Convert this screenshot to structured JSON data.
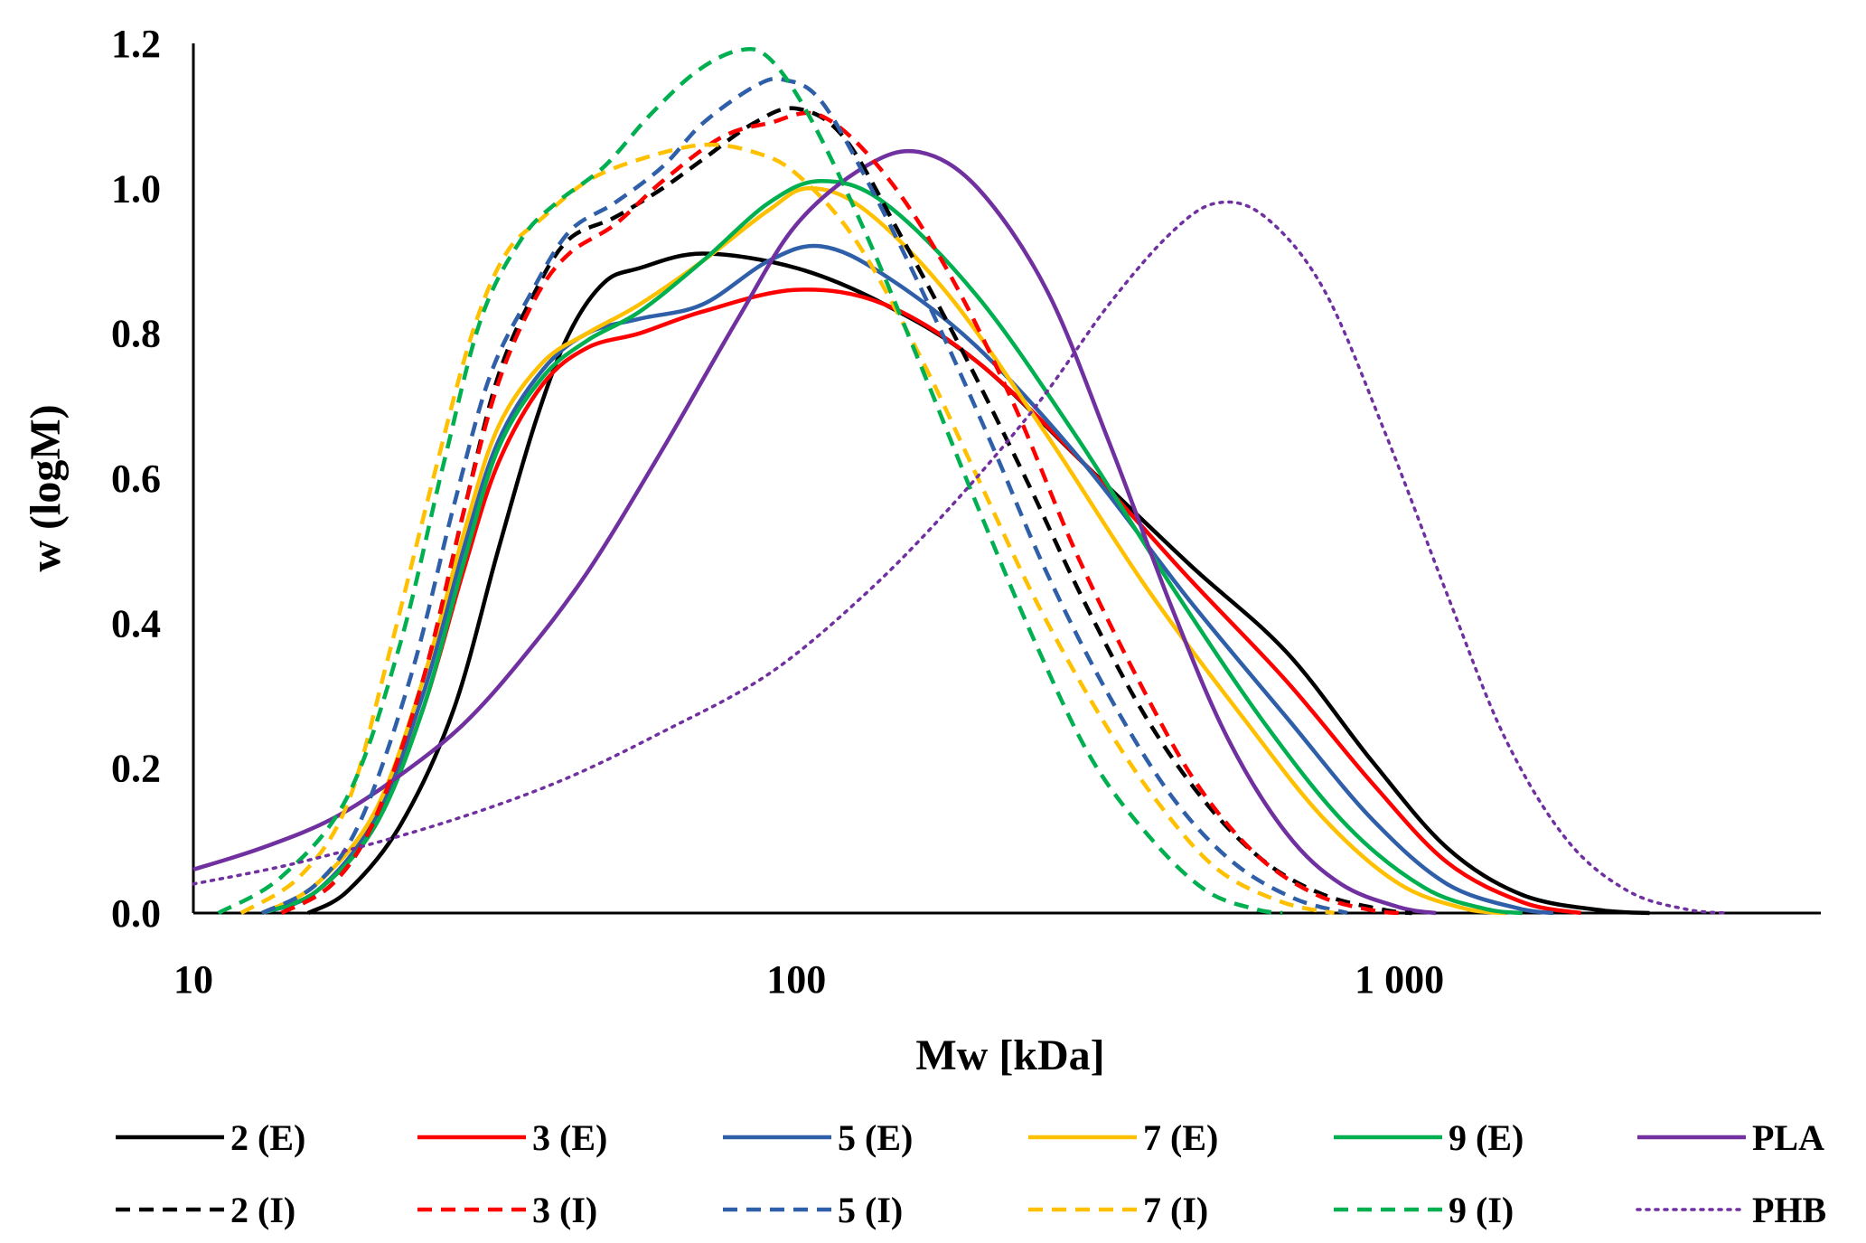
{
  "chart_data": {
    "type": "line",
    "title": "",
    "xlabel": "Mw [kDa]",
    "ylabel": "w (logM)",
    "xscale": "log",
    "xlim": [
      10,
      5000
    ],
    "ylim": [
      0,
      1.2
    ],
    "xticks": [
      10,
      100,
      1000
    ],
    "xtick_labels": [
      "10",
      "100",
      "1 000"
    ],
    "yticks": [
      0,
      0.2,
      0.4,
      0.6,
      0.8,
      1.0,
      1.2
    ],
    "ytick_labels": [
      "0.0",
      "0.2",
      "0.4",
      "0.6",
      "0.8",
      "1.0",
      "1.2"
    ],
    "grid": false,
    "legend_position": "bottom",
    "series": [
      {
        "name": "2 (E)",
        "color": "#000000",
        "style": "solid",
        "points": [
          [
            15.5,
            0
          ],
          [
            18,
            0.03
          ],
          [
            22,
            0.12
          ],
          [
            27,
            0.28
          ],
          [
            32,
            0.5
          ],
          [
            37,
            0.68
          ],
          [
            42,
            0.8
          ],
          [
            48,
            0.87
          ],
          [
            55,
            0.89
          ],
          [
            70,
            0.91
          ],
          [
            100,
            0.89
          ],
          [
            140,
            0.84
          ],
          [
            200,
            0.76
          ],
          [
            300,
            0.62
          ],
          [
            450,
            0.48
          ],
          [
            650,
            0.36
          ],
          [
            900,
            0.21
          ],
          [
            1200,
            0.09
          ],
          [
            1600,
            0.025
          ],
          [
            2200,
            0.003
          ],
          [
            2600,
            0
          ]
        ]
      },
      {
        "name": "3 (E)",
        "color": "#ff0000",
        "style": "solid",
        "points": [
          [
            13,
            0
          ],
          [
            16,
            0.03
          ],
          [
            20,
            0.12
          ],
          [
            24,
            0.28
          ],
          [
            28,
            0.47
          ],
          [
            32,
            0.62
          ],
          [
            38,
            0.73
          ],
          [
            45,
            0.78
          ],
          [
            55,
            0.8
          ],
          [
            70,
            0.83
          ],
          [
            100,
            0.86
          ],
          [
            140,
            0.84
          ],
          [
            200,
            0.76
          ],
          [
            300,
            0.62
          ],
          [
            450,
            0.46
          ],
          [
            650,
            0.32
          ],
          [
            900,
            0.18
          ],
          [
            1200,
            0.07
          ],
          [
            1600,
            0.015
          ],
          [
            2000,
            0
          ]
        ]
      },
      {
        "name": "5 (E)",
        "color": "#2e5fa8",
        "style": "solid",
        "points": [
          [
            13,
            0
          ],
          [
            16,
            0.03
          ],
          [
            20,
            0.13
          ],
          [
            24,
            0.3
          ],
          [
            28,
            0.5
          ],
          [
            32,
            0.65
          ],
          [
            38,
            0.75
          ],
          [
            45,
            0.8
          ],
          [
            55,
            0.82
          ],
          [
            70,
            0.84
          ],
          [
            90,
            0.9
          ],
          [
            110,
            0.92
          ],
          [
            140,
            0.88
          ],
          [
            200,
            0.78
          ],
          [
            300,
            0.62
          ],
          [
            450,
            0.43
          ],
          [
            650,
            0.27
          ],
          [
            900,
            0.13
          ],
          [
            1200,
            0.04
          ],
          [
            1600,
            0.005
          ],
          [
            1800,
            0
          ]
        ]
      },
      {
        "name": "7 (E)",
        "color": "#ffc000",
        "style": "solid",
        "points": [
          [
            13,
            0
          ],
          [
            16,
            0.04
          ],
          [
            20,
            0.14
          ],
          [
            24,
            0.32
          ],
          [
            28,
            0.52
          ],
          [
            32,
            0.67
          ],
          [
            38,
            0.76
          ],
          [
            45,
            0.8
          ],
          [
            55,
            0.84
          ],
          [
            70,
            0.9
          ],
          [
            90,
            0.97
          ],
          [
            105,
            1.0
          ],
          [
            130,
            0.97
          ],
          [
            180,
            0.85
          ],
          [
            260,
            0.66
          ],
          [
            380,
            0.45
          ],
          [
            550,
            0.27
          ],
          [
            750,
            0.13
          ],
          [
            1000,
            0.04
          ],
          [
            1300,
            0.005
          ],
          [
            1500,
            0
          ]
        ]
      },
      {
        "name": "9 (E)",
        "color": "#00b050",
        "style": "solid",
        "points": [
          [
            13,
            0
          ],
          [
            16,
            0.03
          ],
          [
            20,
            0.12
          ],
          [
            24,
            0.28
          ],
          [
            28,
            0.48
          ],
          [
            32,
            0.64
          ],
          [
            38,
            0.74
          ],
          [
            45,
            0.79
          ],
          [
            55,
            0.83
          ],
          [
            70,
            0.9
          ],
          [
            90,
            0.98
          ],
          [
            110,
            1.01
          ],
          [
            140,
            0.98
          ],
          [
            200,
            0.85
          ],
          [
            290,
            0.66
          ],
          [
            420,
            0.45
          ],
          [
            600,
            0.26
          ],
          [
            820,
            0.12
          ],
          [
            1100,
            0.035
          ],
          [
            1400,
            0.005
          ],
          [
            1600,
            0
          ]
        ]
      },
      {
        "name": "PLA",
        "color": "#7030a0",
        "style": "solid",
        "points": [
          [
            10,
            0.06
          ],
          [
            13,
            0.09
          ],
          [
            17,
            0.13
          ],
          [
            22,
            0.19
          ],
          [
            28,
            0.26
          ],
          [
            35,
            0.35
          ],
          [
            45,
            0.47
          ],
          [
            60,
            0.64
          ],
          [
            80,
            0.82
          ],
          [
            100,
            0.95
          ],
          [
            130,
            1.03
          ],
          [
            160,
            1.05
          ],
          [
            200,
            1.0
          ],
          [
            260,
            0.86
          ],
          [
            330,
            0.65
          ],
          [
            420,
            0.42
          ],
          [
            520,
            0.24
          ],
          [
            650,
            0.11
          ],
          [
            800,
            0.04
          ],
          [
            1000,
            0.008
          ],
          [
            1150,
            0
          ]
        ]
      },
      {
        "name": "2 (I)",
        "color": "#000000",
        "style": "dash",
        "points": [
          [
            14,
            0
          ],
          [
            17,
            0.04
          ],
          [
            20,
            0.13
          ],
          [
            24,
            0.32
          ],
          [
            28,
            0.55
          ],
          [
            32,
            0.74
          ],
          [
            37,
            0.86
          ],
          [
            42,
            0.93
          ],
          [
            50,
            0.96
          ],
          [
            60,
            1.0
          ],
          [
            70,
            1.04
          ],
          [
            85,
            1.09
          ],
          [
            100,
            1.11
          ],
          [
            120,
            1.07
          ],
          [
            150,
            0.93
          ],
          [
            190,
            0.77
          ],
          [
            240,
            0.6
          ],
          [
            300,
            0.43
          ],
          [
            380,
            0.27
          ],
          [
            480,
            0.15
          ],
          [
            600,
            0.07
          ],
          [
            750,
            0.025
          ],
          [
            950,
            0.004
          ],
          [
            1050,
            0
          ]
        ]
      },
      {
        "name": "3 (I)",
        "color": "#ff0000",
        "style": "dash",
        "points": [
          [
            14,
            0
          ],
          [
            17,
            0.04
          ],
          [
            20,
            0.13
          ],
          [
            24,
            0.32
          ],
          [
            28,
            0.55
          ],
          [
            32,
            0.73
          ],
          [
            37,
            0.85
          ],
          [
            42,
            0.91
          ],
          [
            50,
            0.95
          ],
          [
            60,
            1.01
          ],
          [
            75,
            1.07
          ],
          [
            90,
            1.09
          ],
          [
            110,
            1.1
          ],
          [
            140,
            1.02
          ],
          [
            180,
            0.88
          ],
          [
            230,
            0.7
          ],
          [
            290,
            0.5
          ],
          [
            370,
            0.32
          ],
          [
            460,
            0.18
          ],
          [
            580,
            0.08
          ],
          [
            730,
            0.025
          ],
          [
            900,
            0.004
          ],
          [
            1000,
            0
          ]
        ]
      },
      {
        "name": "5 (I)",
        "color": "#2e5fa8",
        "style": "dash",
        "points": [
          [
            13,
            0
          ],
          [
            16,
            0.04
          ],
          [
            19,
            0.13
          ],
          [
            23,
            0.33
          ],
          [
            27,
            0.56
          ],
          [
            31,
            0.74
          ],
          [
            36,
            0.85
          ],
          [
            42,
            0.94
          ],
          [
            50,
            0.98
          ],
          [
            60,
            1.03
          ],
          [
            70,
            1.09
          ],
          [
            85,
            1.14
          ],
          [
            95,
            1.15
          ],
          [
            110,
            1.12
          ],
          [
            135,
            0.99
          ],
          [
            170,
            0.82
          ],
          [
            210,
            0.65
          ],
          [
            260,
            0.47
          ],
          [
            330,
            0.3
          ],
          [
            420,
            0.16
          ],
          [
            530,
            0.07
          ],
          [
            670,
            0.02
          ],
          [
            820,
            0
          ]
        ]
      },
      {
        "name": "7 (I)",
        "color": "#ffc000",
        "style": "dash",
        "points": [
          [
            12,
            0
          ],
          [
            15,
            0.05
          ],
          [
            18,
            0.15
          ],
          [
            21,
            0.35
          ],
          [
            25,
            0.6
          ],
          [
            29,
            0.8
          ],
          [
            33,
            0.91
          ],
          [
            38,
            0.96
          ],
          [
            45,
            1.01
          ],
          [
            55,
            1.04
          ],
          [
            70,
            1.06
          ],
          [
            85,
            1.05
          ],
          [
            100,
            1.02
          ],
          [
            125,
            0.93
          ],
          [
            160,
            0.77
          ],
          [
            200,
            0.6
          ],
          [
            250,
            0.43
          ],
          [
            320,
            0.27
          ],
          [
            400,
            0.15
          ],
          [
            500,
            0.06
          ],
          [
            640,
            0.015
          ],
          [
            780,
            0
          ]
        ]
      },
      {
        "name": "9 (I)",
        "color": "#00b050",
        "style": "dash",
        "points": [
          [
            11,
            0
          ],
          [
            14,
            0.05
          ],
          [
            18,
            0.16
          ],
          [
            22,
            0.37
          ],
          [
            26,
            0.62
          ],
          [
            30,
            0.82
          ],
          [
            35,
            0.93
          ],
          [
            40,
            0.98
          ],
          [
            48,
            1.03
          ],
          [
            57,
            1.1
          ],
          [
            68,
            1.16
          ],
          [
            80,
            1.19
          ],
          [
            90,
            1.18
          ],
          [
            105,
            1.1
          ],
          [
            130,
            0.94
          ],
          [
            160,
            0.76
          ],
          [
            200,
            0.56
          ],
          [
            250,
            0.37
          ],
          [
            310,
            0.21
          ],
          [
            390,
            0.1
          ],
          [
            480,
            0.03
          ],
          [
            580,
            0.005
          ],
          [
            640,
            0
          ]
        ]
      },
      {
        "name": "PHB",
        "color": "#7030a0",
        "style": "dot",
        "points": [
          [
            10,
            0.04
          ],
          [
            15,
            0.07
          ],
          [
            25,
            0.12
          ],
          [
            40,
            0.18
          ],
          [
            60,
            0.25
          ],
          [
            90,
            0.33
          ],
          [
            130,
            0.44
          ],
          [
            180,
            0.56
          ],
          [
            250,
            0.7
          ],
          [
            330,
            0.84
          ],
          [
            420,
            0.94
          ],
          [
            500,
            0.98
          ],
          [
            600,
            0.96
          ],
          [
            750,
            0.86
          ],
          [
            950,
            0.66
          ],
          [
            1200,
            0.44
          ],
          [
            1500,
            0.24
          ],
          [
            1900,
            0.1
          ],
          [
            2400,
            0.03
          ],
          [
            3000,
            0.005
          ],
          [
            3500,
            0
          ]
        ]
      }
    ]
  }
}
